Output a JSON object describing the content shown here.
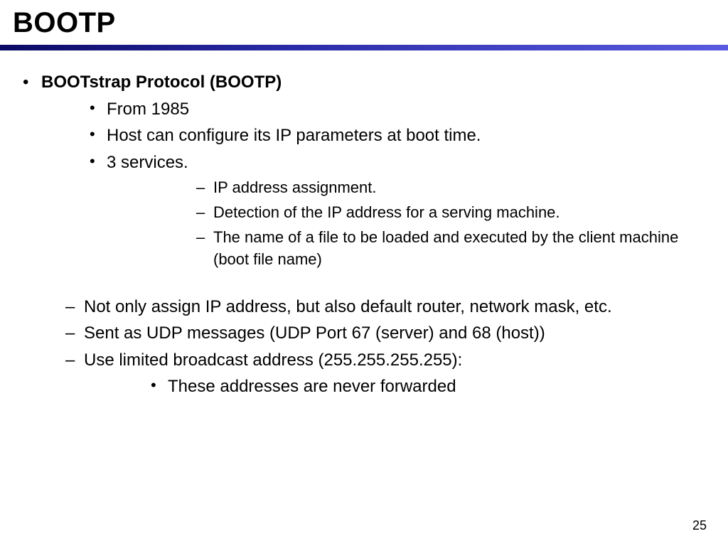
{
  "slide": {
    "title": "BOOTP",
    "page_number": "25",
    "divider_gradient": [
      "#0a0a64",
      "#2b2ba8",
      "#5a5ae0"
    ],
    "background_color": "#ffffff",
    "text_color": "#000000",
    "title_fontsize": 40,
    "body_fontsize": 24,
    "sub_fontsize": 22
  },
  "content": {
    "heading": "BOOTstrap Protocol (BOOTP)",
    "sub_a": "From 1985",
    "sub_b": "Host can configure its IP parameters at boot time.",
    "sub_c": "3 services.",
    "svc_1": "IP address assignment.",
    "svc_2": "Detection of the IP address for a serving machine.",
    "svc_3": "The name of a file to be loaded and executed by the client machine (boot file name)",
    "dash_1": "Not only assign IP address, but also default router, network mask, etc.",
    "dash_2": "Sent as UDP messages (UDP Port 67 (server) and 68 (host))",
    "dash_3": "Use limited broadcast address (255.255.255.255):",
    "dash_3_sub": "These addresses are never forwarded"
  }
}
